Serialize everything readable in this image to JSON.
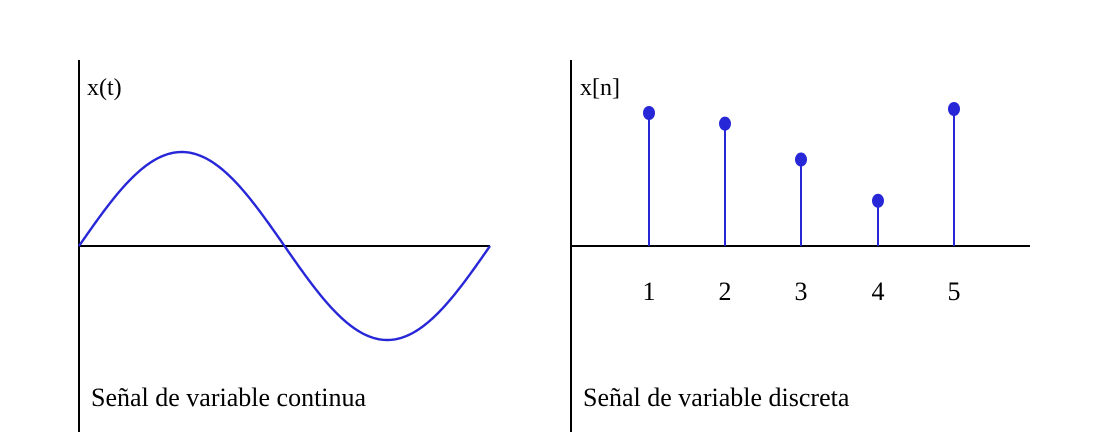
{
  "colors": {
    "signal": "#2727d8",
    "axis": "#000000",
    "background": "#ffffff"
  },
  "continuous_panel": {
    "axis_label": "x(t)",
    "caption": "Señal de variable continua"
  },
  "discrete_panel": {
    "axis_label": "x[n]",
    "caption": "Señal de variable discreta",
    "ticks": [
      "1",
      "2",
      "3",
      "4",
      "5"
    ]
  },
  "chart_data": [
    {
      "type": "line",
      "function": "sine",
      "periods": 1,
      "amplitude": 1
    },
    {
      "type": "stem",
      "n": [
        1,
        2,
        3,
        4,
        5
      ],
      "values": [
        1.0,
        0.92,
        0.65,
        0.34,
        1.03
      ]
    }
  ]
}
